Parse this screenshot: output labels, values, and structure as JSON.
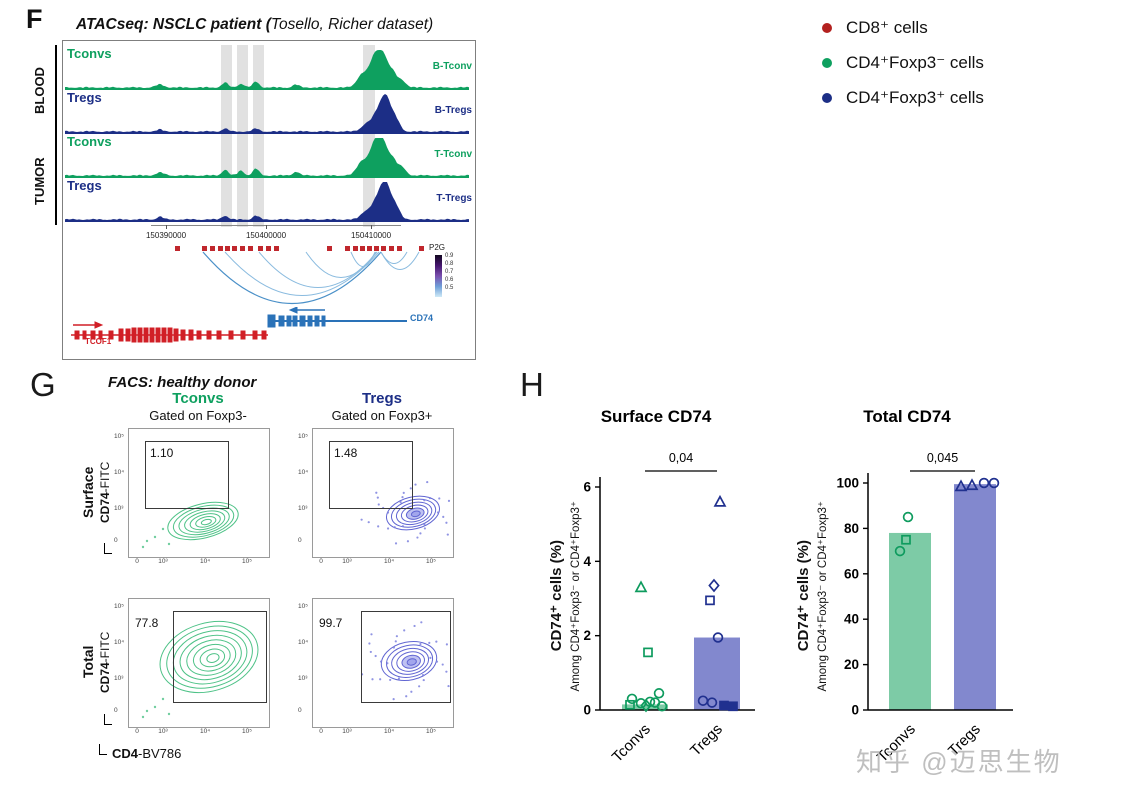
{
  "panelF": {
    "label": "F",
    "title_main": "ATACseq: NSCLC patient (",
    "title_dataset": "Tosello, Richer dataset)",
    "group_labels": [
      "BLOOD",
      "TUMOR"
    ],
    "tracks": [
      {
        "name": "Tconvs",
        "right_label": "B-Tconv"
      },
      {
        "name": "Tregs",
        "right_label": "B-Tregs"
      },
      {
        "name": "Tconvs",
        "right_label": "T-Tconv"
      },
      {
        "name": "Tregs",
        "right_label": "T-Tregs"
      }
    ],
    "axis_ticks": [
      "150390000",
      "150400000",
      "150410000"
    ],
    "p2g_label": "P2G",
    "p2g_scale": [
      "0.9",
      "0.8",
      "0.7",
      "0.6",
      "0.5"
    ],
    "gene_tcof1": "TCOF1",
    "gene_cd74": "CD74"
  },
  "legend": {
    "items": [
      {
        "label": "CD8⁺ cells",
        "color": "#b3211f"
      },
      {
        "label": "CD4⁺Foxp3⁻ cells",
        "color": "#0ea05f"
      },
      {
        "label": "CD4⁺Foxp3⁺ cells",
        "color": "#1c2e86"
      }
    ]
  },
  "panelG": {
    "label": "G",
    "title": "FACS: healthy donor",
    "columns": [
      {
        "name": "Tconvs",
        "subtitle": "Gated on Foxp3-"
      },
      {
        "name": "Tregs",
        "subtitle": "Gated on Foxp3+"
      }
    ],
    "row_labels": [
      {
        "name": "Surface",
        "axis_bold": "CD74",
        "axis_rest": "-FITC"
      },
      {
        "name": "Total",
        "axis_bold": "CD74",
        "axis_rest": "-FITC"
      }
    ],
    "xaxis_bold": "CD4",
    "xaxis_rest": "-BV786",
    "plots": [
      {
        "gate_value": "1.10"
      },
      {
        "gate_value": "1.48"
      },
      {
        "gate_value": "77.8"
      },
      {
        "gate_value": "99.7"
      }
    ],
    "x_ticks": [
      "0",
      "10³",
      "10⁴",
      "10⁵"
    ],
    "y_ticks": [
      "10⁵",
      "10⁴",
      "10³",
      "0"
    ]
  },
  "panelH": {
    "label": "H"
  },
  "chart_data": [
    {
      "type": "scatter-bar",
      "title": "Surface CD74",
      "ylabel": "CD74⁺ cells (%)",
      "ylabel_sub": "Among CD4⁺Foxp3⁻ or CD4⁺Foxp3⁺",
      "ylim": [
        0,
        6
      ],
      "yticks": [
        0,
        2,
        4,
        6
      ],
      "categories": [
        "Tconvs",
        "Tregs"
      ],
      "significance": "0,04",
      "bars": {
        "values": [
          0.15,
          1.95
        ],
        "colors": [
          "#7dcba6",
          "#8288ce"
        ]
      },
      "series": [
        {
          "name": "Tconvs",
          "color": "#0e9b5e",
          "points": [
            {
              "m": "triangle",
              "y": 3.3,
              "dx": -4
            },
            {
              "m": "square",
              "y": 1.55,
              "dx": 3
            },
            {
              "m": "circle",
              "y": 0.45,
              "dx": 14
            },
            {
              "m": "circle",
              "y": 0.3,
              "dx": -13
            },
            {
              "m": "circle",
              "y": 0.22,
              "dx": 5
            },
            {
              "m": "circle",
              "y": 0.18,
              "dx": -4
            },
            {
              "m": "square",
              "y": 0.14,
              "dx": -15
            },
            {
              "m": "diamond",
              "y": 0.12,
              "dx": 1
            },
            {
              "m": "circle",
              "y": 0.2,
              "dx": 10
            },
            {
              "m": "circle",
              "y": 0.1,
              "dx": 17
            }
          ]
        },
        {
          "name": "Tregs",
          "color": "#20308f",
          "points": [
            {
              "m": "triangle",
              "y": 5.6,
              "dx": 3
            },
            {
              "m": "diamond",
              "y": 3.35,
              "dx": -3
            },
            {
              "m": "square",
              "y": 2.95,
              "dx": -7
            },
            {
              "m": "circle",
              "y": 1.95,
              "dx": 1
            },
            {
              "m": "circle",
              "y": 0.25,
              "dx": -14
            },
            {
              "m": "circle",
              "y": 0.2,
              "dx": -5
            },
            {
              "m": "square",
              "y": 0.12,
              "dx": 7,
              "filled": true
            },
            {
              "m": "square",
              "y": 0.1,
              "dx": 16,
              "filled": true
            }
          ]
        }
      ]
    },
    {
      "type": "scatter-bar",
      "title": "Total CD74",
      "ylabel": "CD74⁺ cells (%)",
      "ylabel_sub": "Among CD4⁺Foxp3⁻ or CD4⁺Foxp3⁺",
      "ylim": [
        0,
        100
      ],
      "yticks": [
        0,
        20,
        40,
        60,
        80,
        100
      ],
      "categories": [
        "Tconvs",
        "Tregs"
      ],
      "significance": "0,045",
      "bars": {
        "values": [
          78,
          99.5
        ],
        "colors": [
          "#7dcba6",
          "#8288ce"
        ]
      },
      "series": [
        {
          "name": "Tconvs",
          "color": "#0e9b5e",
          "points": [
            {
              "m": "circle",
              "y": 85,
              "dx": -2
            },
            {
              "m": "square",
              "y": 75,
              "dx": -4
            },
            {
              "m": "circle",
              "y": 70,
              "dx": -10
            }
          ]
        },
        {
          "name": "Tregs",
          "color": "#20308f",
          "points": [
            {
              "m": "triangle",
              "y": 98.5,
              "dx": -14
            },
            {
              "m": "triangle",
              "y": 99,
              "dx": -3
            },
            {
              "m": "circle",
              "y": 100,
              "dx": 9
            },
            {
              "m": "circle",
              "y": 100,
              "dx": 19
            }
          ]
        }
      ]
    }
  ],
  "watermark": "知乎 @迈思生物"
}
